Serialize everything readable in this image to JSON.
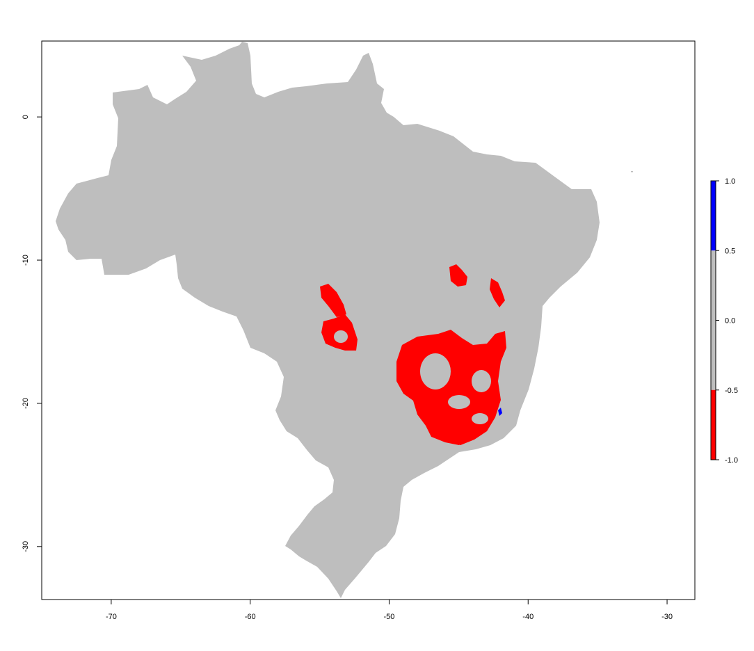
{
  "map": {
    "x_axis": {
      "range": [
        -75,
        -28
      ],
      "ticks": [
        {
          "value": -70,
          "label": "-70"
        },
        {
          "value": -60,
          "label": "-60"
        },
        {
          "value": -50,
          "label": "-50"
        },
        {
          "value": -40,
          "label": "-40"
        },
        {
          "value": -30,
          "label": "-30"
        }
      ]
    },
    "y_axis": {
      "range": [
        -33.7,
        5.3
      ],
      "ticks": [
        {
          "value": 0,
          "label": "0"
        },
        {
          "value": -10,
          "label": "-10"
        },
        {
          "value": -20,
          "label": "-20"
        },
        {
          "value": -30,
          "label": "-30"
        }
      ]
    },
    "colors": {
      "land": "#bebebe",
      "negative": "#ff0000",
      "positive": "#0000ff"
    },
    "legend": {
      "placement": "right",
      "breaks": [
        {
          "value": 1.0,
          "label": "1.0"
        },
        {
          "value": 0.5,
          "label": "0.5"
        },
        {
          "value": 0.0,
          "label": "0.0"
        },
        {
          "value": -0.5,
          "label": "-0.5"
        },
        {
          "value": -1.0,
          "label": "-1.0"
        }
      ],
      "bins": [
        {
          "from": 0.5,
          "to": 1.0,
          "color": "#0000ff"
        },
        {
          "from": -0.5,
          "to": 0.5,
          "color": "#bebebe"
        },
        {
          "from": -1.0,
          "to": -0.5,
          "color": "#ff0000"
        }
      ]
    }
  }
}
